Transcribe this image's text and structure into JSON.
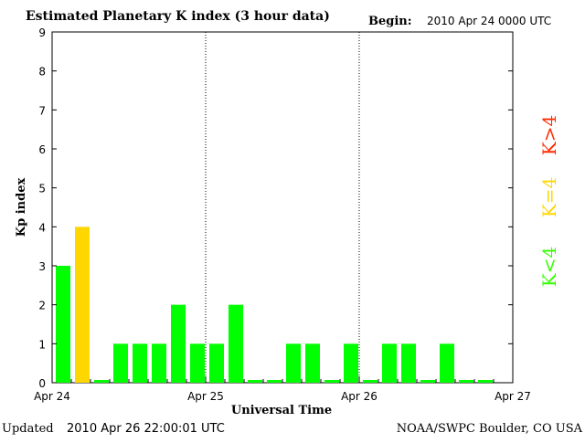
{
  "header": {
    "title": "Estimated Planetary K index (3 hour data)",
    "begin_label": "Begin:",
    "begin_value": "2010 Apr 24 0000 UTC"
  },
  "footer": {
    "updated_label": "Updated",
    "updated_value": "2010 Apr 26 22:00:01 UTC",
    "source": "NOAA/SWPC Boulder, CO USA"
  },
  "legend": [
    {
      "label": "K>4",
      "color": "#ff2a00"
    },
    {
      "label": "K=4",
      "color": "#ffd700"
    },
    {
      "label": "K<4",
      "color": "#33ff00"
    }
  ],
  "colors": {
    "low": "#00ff00",
    "moderate": "#ffd700",
    "high": "#ff2a00"
  },
  "chart_data": {
    "type": "bar",
    "title": "Estimated Planetary K index (3 hour data)",
    "xlabel": "Universal Time",
    "ylabel": "Kp index",
    "ylim": [
      0,
      9
    ],
    "yticks": [
      "0",
      "1",
      "2",
      "3",
      "4",
      "5",
      "6",
      "7",
      "8",
      "9"
    ],
    "xticks": [
      "Apr 24",
      "Apr 25",
      "Apr 26",
      "Apr 27"
    ],
    "grid": "vertical dotted lines at day boundaries",
    "bar_interval_hours": 3,
    "values": [
      3,
      4,
      0,
      1,
      1,
      1,
      2,
      1,
      1,
      2,
      0,
      0,
      1,
      1,
      0,
      1,
      0,
      1,
      1,
      0,
      1,
      0,
      0
    ]
  }
}
